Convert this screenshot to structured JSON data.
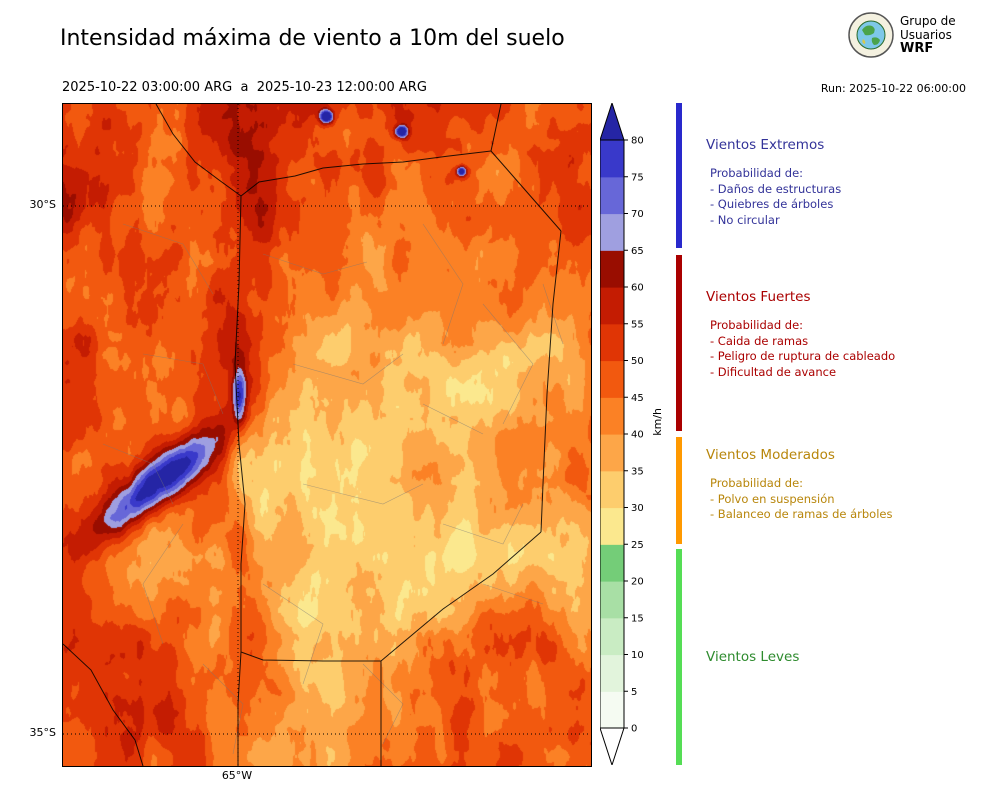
{
  "header": {
    "title": "Intensidad máxima de viento a 10m del suelo",
    "period": "2025-10-22 03:00:00 ARG  a  2025-10-23 12:00:00 ARG",
    "run": "Run: 2025-10-22 06:00:00",
    "org": {
      "line1": "Grupo de",
      "line2": "Usuarios",
      "line3": "WRF"
    }
  },
  "map": {
    "lat_ticks": [
      "30°S",
      "35°S"
    ],
    "lon_ticks": [
      "65°W"
    ]
  },
  "colorbar": {
    "unit": "km/h",
    "ticks": [
      0,
      5,
      10,
      15,
      20,
      25,
      30,
      35,
      40,
      45,
      50,
      55,
      60,
      65,
      70,
      75,
      80
    ],
    "interval_colors": [
      "#f5fbf2",
      "#e2f4dc",
      "#c9ecc3",
      "#a8dfa5",
      "#74cd78",
      "#fbe88e",
      "#fdcd6d",
      "#fda648",
      "#fb8125",
      "#f2590f",
      "#e03505",
      "#c41c02",
      "#990d00",
      "#9f9fe0",
      "#6767d8",
      "#3939ca"
    ],
    "over_color": "#2525a5",
    "under_color": "#ffffff"
  },
  "legend": {
    "sections": [
      {
        "title": "Vientos Extremos",
        "title_color": "#333399",
        "bar_color": "#2929cc",
        "intro": "Probabilidad de:",
        "items": [
          "- Daños de estructuras",
          "- Quiebres de árboles",
          "- No circular"
        ]
      },
      {
        "title": "Vientos Fuertes",
        "title_color": "#aa0000",
        "bar_color": "#aa0000",
        "intro": "Probabilidad de:",
        "items": [
          "- Caida de ramas",
          "- Peligro de ruptura de cableado",
          "- Dificultad de avance"
        ]
      },
      {
        "title": "Vientos Moderados",
        "title_color": "#b8860b",
        "bar_color": "#ff9900",
        "intro": "Probabilidad de:",
        "items": [
          "- Polvo en suspensión",
          "- Balanceo de ramas de árboles"
        ]
      },
      {
        "title": "Vientos Leves",
        "title_color": "#2e8b2e",
        "bar_color": "#55dd55",
        "intro": "",
        "items": []
      }
    ]
  }
}
